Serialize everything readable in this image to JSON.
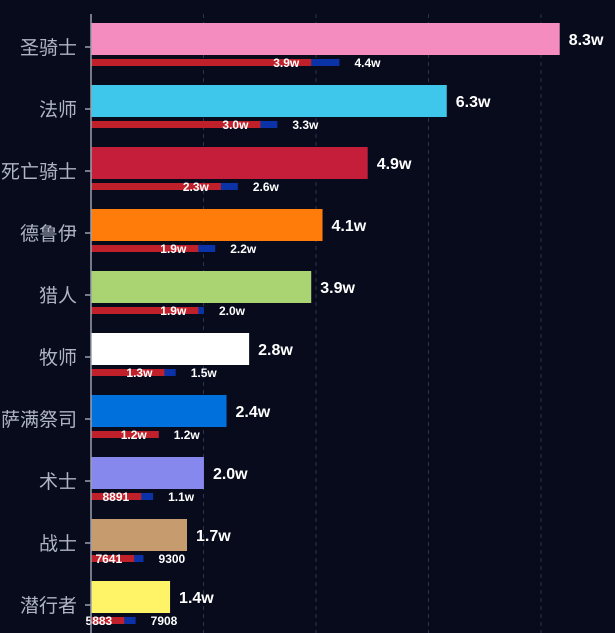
{
  "chart_data": {
    "type": "bar",
    "orientation": "horizontal",
    "categories": [
      "圣骑士",
      "法师",
      "死亡骑士",
      "德鲁伊",
      "猎人",
      "牧师",
      "萨满祭司",
      "术士",
      "战士",
      "潜行者"
    ],
    "series": [
      {
        "values": [
          83000,
          63000,
          49000,
          41000,
          39000,
          28000,
          24000,
          20000,
          17000,
          14000
        ]
      },
      {
        "values": [
          39000,
          30000,
          23000,
          19000,
          19000,
          13000,
          12000,
          8891,
          7641,
          5883
        ]
      },
      {
        "values": [
          44000,
          33000,
          26000,
          22000,
          20000,
          15000,
          12000,
          11000,
          9300,
          7908
        ]
      }
    ],
    "total_labels": [
      "8.3w",
      "6.3w",
      "4.9w",
      "4.1w",
      "3.9w",
      "2.8w",
      "2.4w",
      "2.0w",
      "1.7w",
      "1.4w"
    ],
    "red_labels": [
      "3.9w",
      "3.0w",
      "2.3w",
      "1.9w",
      "1.9w",
      "1.3w",
      "1.2w",
      "8891",
      "7641",
      "5883"
    ],
    "blue_labels": [
      "4.4w",
      "3.3w",
      "2.6w",
      "2.2w",
      "2.0w",
      "1.5w",
      "1.2w",
      "1.1w",
      "9300",
      "7908"
    ],
    "bar_colors": [
      "#f48cbf",
      "#3fc7eb",
      "#c41e3a",
      "#ff7c0a",
      "#aad372",
      "#ffffff",
      "#0070dd",
      "#8788ee",
      "#c69b6d",
      "#fff468"
    ],
    "sub_colors": {
      "red": "#c0202a",
      "blue": "#0b32a6"
    },
    "xlim": [
      0,
      85000
    ],
    "grid": true
  }
}
